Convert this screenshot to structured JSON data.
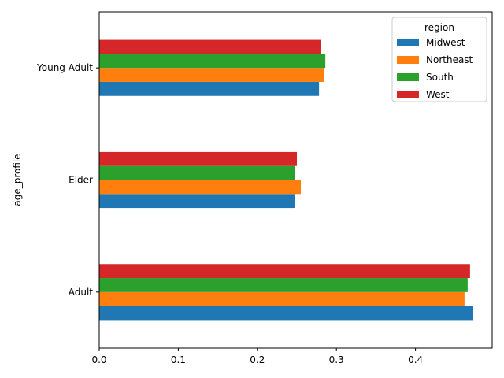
{
  "chart_data": {
    "type": "bar",
    "orientation": "horizontal",
    "title": "",
    "xlabel": "",
    "ylabel": "age_profile",
    "categories": [
      "Adult",
      "Elder",
      "Young Adult"
    ],
    "xlim": [
      0.0,
      0.497
    ],
    "xticks": [
      0.0,
      0.1,
      0.2,
      0.3,
      0.4
    ],
    "xtick_labels": [
      "0.0",
      "0.1",
      "0.2",
      "0.3",
      "0.4"
    ],
    "grid": false,
    "legend": {
      "title": "region",
      "position": "top-right"
    },
    "series": [
      {
        "name": "Midwest",
        "color": "#1f77b4",
        "values": [
          0.473,
          0.248,
          0.278
        ]
      },
      {
        "name": "Northeast",
        "color": "#ff7f0e",
        "values": [
          0.462,
          0.255,
          0.284
        ]
      },
      {
        "name": "South",
        "color": "#2ca02c",
        "values": [
          0.466,
          0.247,
          0.286
        ]
      },
      {
        "name": "West",
        "color": "#d62728",
        "values": [
          0.469,
          0.25,
          0.28
        ]
      }
    ]
  }
}
